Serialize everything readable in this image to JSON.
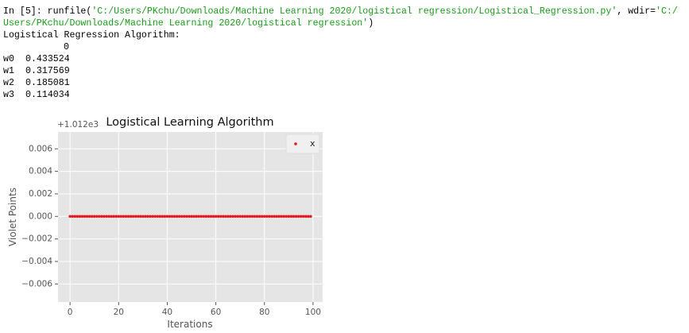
{
  "console": {
    "prompt": "In [5]: ",
    "call_open": "runfile(",
    "file_arg": "'C:/Users/PKchu/Downloads/Machine Learning 2020/logistical regression/Logistical_Regression.py'",
    "wdir_key": ", wdir=",
    "wdir_arg_start": "'C:/",
    "wdir_arg_end": "Users/PKchu/Downloads/Machine Learning 2020/logistical regression'",
    "call_close": ")",
    "output_title": "Logistical Regression Algorithm:",
    "table": {
      "column": "0",
      "rows": [
        [
          "w0",
          0.433524
        ],
        [
          "w1",
          0.317569
        ],
        [
          "w2",
          0.185081
        ],
        [
          "w3",
          0.114034
        ]
      ]
    }
  },
  "chart_data": {
    "type": "scatter",
    "title": "Logistical Learning Algorithm",
    "x_label": "Iterations",
    "y_label": "Violet Points",
    "y_offset_label": "+1.012e3",
    "grid": true,
    "legend": "upper right",
    "xlim": [
      -4.95,
      103.95
    ],
    "ylim": [
      -0.0076,
      0.0075
    ],
    "xticks": [
      0,
      20,
      40,
      60,
      80,
      100
    ],
    "yticks": [
      {
        "value": -0.006,
        "label": "−0.006"
      },
      {
        "value": -0.004,
        "label": "−0.004"
      },
      {
        "value": -0.002,
        "label": "−0.002"
      },
      {
        "value": 0,
        "label": "0.000"
      },
      0.002,
      0.004,
      0.006
    ],
    "series": [
      {
        "name": "x",
        "color": "#e41a1c",
        "x": [
          0,
          1,
          2,
          3,
          4,
          5,
          6,
          7,
          8,
          9,
          10,
          11,
          12,
          13,
          14,
          15,
          16,
          17,
          18,
          19,
          20,
          21,
          22,
          23,
          24,
          25,
          26,
          27,
          28,
          29,
          30,
          31,
          32,
          33,
          34,
          35,
          36,
          37,
          38,
          39,
          40,
          41,
          42,
          43,
          44,
          45,
          46,
          47,
          48,
          49,
          50,
          51,
          52,
          53,
          54,
          55,
          56,
          57,
          58,
          59,
          60,
          61,
          62,
          63,
          64,
          65,
          66,
          67,
          68,
          69,
          70,
          71,
          72,
          73,
          74,
          75,
          76,
          77,
          78,
          79,
          80,
          81,
          82,
          83,
          84,
          85,
          86,
          87,
          88,
          89,
          90,
          91,
          92,
          93,
          94,
          95,
          96,
          97,
          98,
          99
        ],
        "values": [
          0,
          0,
          0,
          0,
          0,
          0,
          0,
          0,
          0,
          0,
          0,
          0,
          0,
          0,
          0,
          0,
          0,
          0,
          0,
          0,
          0,
          0,
          0,
          0,
          0,
          0,
          0,
          0,
          0,
          0,
          0,
          0,
          0,
          0,
          0,
          0,
          0,
          0,
          0,
          0,
          0,
          0,
          0,
          0,
          0,
          0,
          0,
          0,
          0,
          0,
          0,
          0,
          0,
          0,
          0,
          0,
          0,
          0,
          0,
          0,
          0,
          0,
          0,
          0,
          0,
          0,
          0,
          0,
          0,
          0,
          0,
          0,
          0,
          0,
          0,
          0,
          0,
          0,
          0,
          0,
          0,
          0,
          0,
          0,
          0,
          0,
          0,
          0,
          0,
          0,
          0,
          0,
          0,
          0,
          0,
          0,
          0,
          0,
          0,
          0
        ]
      }
    ]
  }
}
